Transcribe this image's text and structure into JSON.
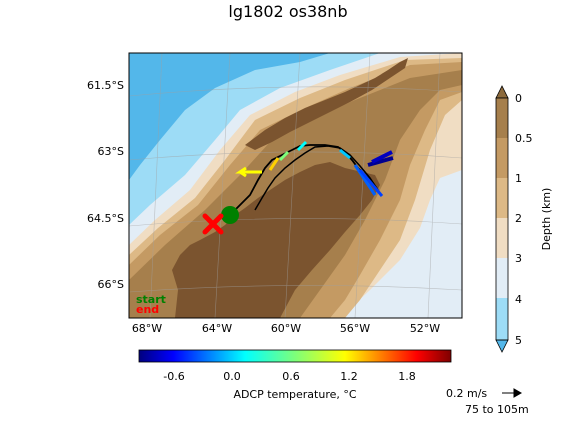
{
  "title": "lg1802 os38nb",
  "map": {
    "lat_ticks": [
      "61.5°S",
      "63°S",
      "64.5°S",
      "66°S"
    ],
    "lon_ticks": [
      "68°W",
      "64°W",
      "60°W",
      "56°W",
      "52°W"
    ],
    "legend_start": "start",
    "legend_end": "end",
    "colors": {
      "start": "#008000",
      "end": "#ff0000",
      "track": "#000000"
    }
  },
  "depth_colorbar": {
    "label": "Depth (km)",
    "ticks": [
      "0",
      "0.5",
      "1",
      "2",
      "3",
      "4",
      "5"
    ],
    "colors": [
      "#a67f4c",
      "#c49a63",
      "#ddb986",
      "#f0ddc3",
      "#e2edf6",
      "#9ddcf6",
      "#53b7ea"
    ]
  },
  "temp_colorbar": {
    "label": "ADCP temperature, °C",
    "ticks": [
      "-0.6",
      "0.0",
      "0.6",
      "1.2",
      "1.8"
    ],
    "colormap": "jet"
  },
  "quiver": {
    "speed_label": "0.2 m/s",
    "depth_range_label": "75 to 105m"
  }
}
